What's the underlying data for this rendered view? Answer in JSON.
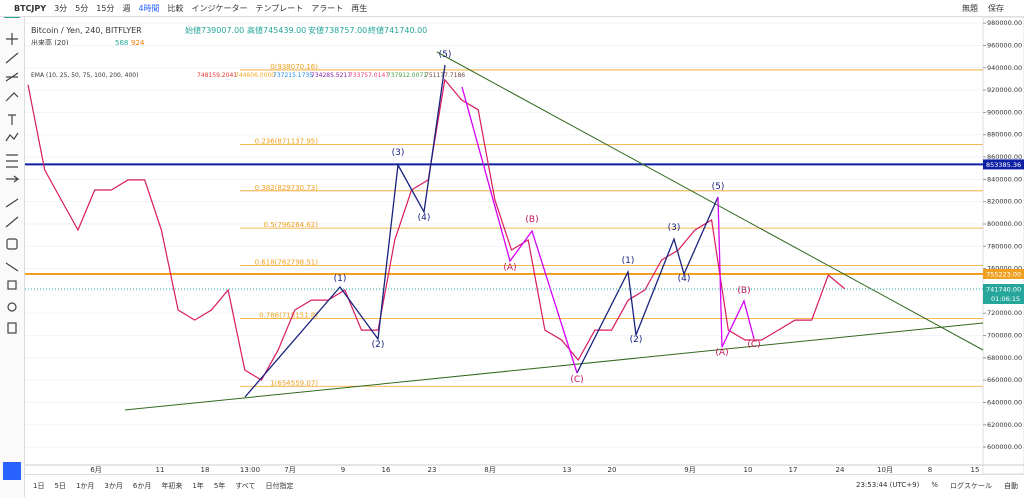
{
  "toolbar": {
    "symbol": "BTCJPY",
    "intervals": [
      "3分",
      "5分",
      "15分",
      "週",
      "4時間"
    ],
    "buttons": [
      "比較",
      "インジケーター",
      "テンプレート",
      "アラート",
      "再生"
    ],
    "right": [
      "無題",
      "保存"
    ]
  },
  "legend": {
    "title": "Bitcoin / Yen, 240, BITFLYER",
    "ohlc": [
      "始値739007.00",
      "高値745439.00",
      "安値738757.00",
      "終値741740.00"
    ],
    "volume": [
      "出来高 (20)",
      "568",
      "924"
    ],
    "ema_title": "EMA (10, 25, 50, 75, 100, 200, 400)",
    "ema_values": [
      "748159.2041",
      "744606.0000",
      "737215.1735",
      "734285.5217",
      "733757.0147",
      "737912.0071",
      "751177.7186"
    ]
  },
  "chart_data": {
    "type": "line",
    "color": "#d81b60",
    "values": [
      924700,
      848500,
      821500,
      794600,
      830500,
      830500,
      839500,
      839500,
      794600,
      722900,
      713900,
      722900,
      740800,
      669100,
      660100,
      687000,
      722900,
      731800,
      731800,
      740800,
      704900,
      704900,
      785700,
      830500,
      839500,
      929200,
      911200,
      902300,
      821500,
      776700,
      785700,
      704900,
      696000,
      678000,
      704900,
      704900,
      731800,
      740800,
      767700,
      776700,
      794600,
      803600,
      704900,
      696000,
      696000,
      704900,
      713900,
      713900,
      754300,
      741740
    ],
    "ylim": [
      584000,
      985500
    ],
    "yticks": [
      {
        "value": 600000,
        "label": "600000.00"
      },
      {
        "value": 620000,
        "label": "620000.00"
      },
      {
        "value": 640000,
        "label": "640000.00"
      },
      {
        "value": 660000,
        "label": "660000.00"
      },
      {
        "value": 680000,
        "label": "680000.00"
      },
      {
        "value": 700000,
        "label": "700000.00"
      },
      {
        "value": 720000,
        "label": "720000.00"
      },
      {
        "value": 740000,
        "label": "740000.00"
      },
      {
        "value": 760000,
        "label": "760000.00"
      },
      {
        "value": 780000,
        "label": "780000.00"
      },
      {
        "value": 800000,
        "label": "800000.00"
      },
      {
        "value": 820000,
        "label": "820000.00"
      },
      {
        "value": 840000,
        "label": "840000.00"
      },
      {
        "value": 860000,
        "label": "860000.00"
      },
      {
        "value": 880000,
        "label": "880000.00"
      },
      {
        "value": 900000,
        "label": "900000.00"
      },
      {
        "value": 920000,
        "label": "920000.00"
      },
      {
        "value": 940000,
        "label": "940000.00"
      },
      {
        "value": 960000,
        "label": "960000.00"
      },
      {
        "value": 980000,
        "label": "980000.00"
      }
    ],
    "x_tick_labels": [
      "6月",
      "11",
      "18",
      "13:00",
      "7月",
      "9",
      "16",
      "23",
      "8月",
      "13",
      "20",
      "9月",
      "10",
      "17",
      "24",
      "10月",
      "8",
      "15"
    ],
    "fib_levels": [
      {
        "value": 938070.16,
        "label": "0(938070.16)"
      },
      {
        "value": 871137.95,
        "label": "0.236(871137.95)"
      },
      {
        "value": 829730.73,
        "label": "0.382(829730.73)"
      },
      {
        "value": 796264.62,
        "label": "0.5(796264.62)"
      },
      {
        "value": 762798.51,
        "label": "0.618(762798.51)"
      },
      {
        "value": 715151.8,
        "label": "0.786(715151.8)"
      },
      {
        "value": 654559.07,
        "label": "1(654559.07)"
      }
    ],
    "hlines": [
      {
        "value": 853385.36,
        "label": "853385.36",
        "color": "#0d1fa3"
      },
      {
        "value": 755223,
        "label": "755223.00",
        "color": "#f0a020"
      }
    ],
    "last_price": {
      "value": 741740,
      "label": "741740.00",
      "countdown": "01:06:15",
      "color": "#26a69a"
    },
    "wave_labels": [
      "(5)",
      "(3)",
      "(4)",
      "(1)",
      "(2)",
      "(A)",
      "(B)",
      "(C)",
      "(1)",
      "(2)",
      "(3)",
      "(4)",
      "(5)",
      "(A)",
      "(B)",
      "(C)"
    ]
  },
  "bottom_bar": {
    "ranges": [
      "1日",
      "5日",
      "1か月",
      "3か月",
      "6か月",
      "年初来",
      "1年",
      "5年",
      "すべて",
      "日付指定"
    ],
    "clock": "23:53:44 (UTC+9)",
    "options": [
      "%",
      "ログスケール",
      "自動"
    ]
  }
}
